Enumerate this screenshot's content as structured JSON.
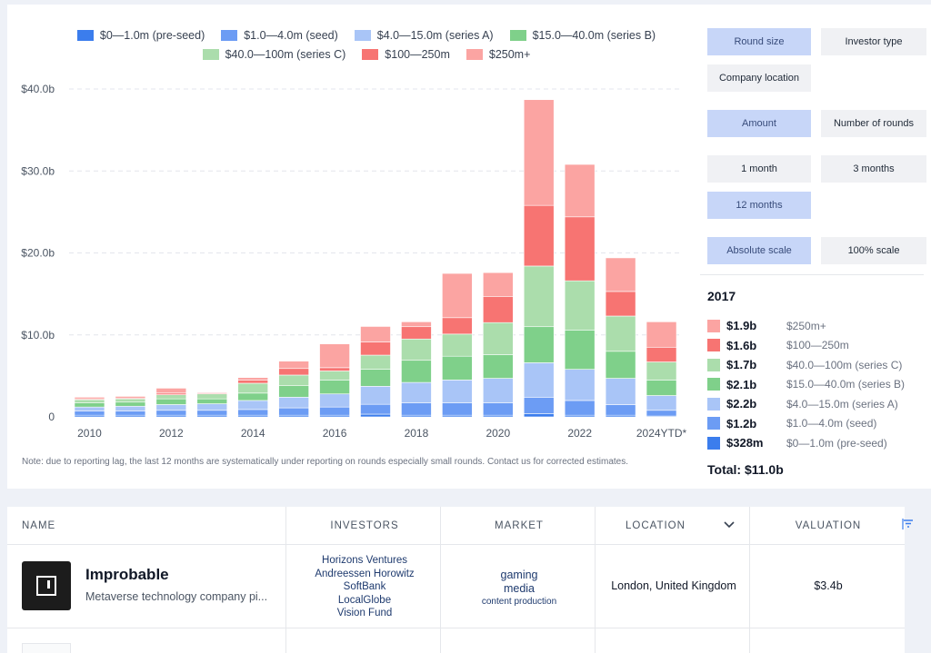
{
  "chart_data": {
    "type": "bar",
    "stacked": true,
    "categories": [
      "2010",
      "2011",
      "2012",
      "2013",
      "2014",
      "2015",
      "2016",
      "2017",
      "2018",
      "2019",
      "2020",
      "2021",
      "2022",
      "2023",
      "2024YTD*"
    ],
    "x_tick_labels": [
      "2010",
      "2012",
      "2014",
      "2016",
      "2018",
      "2020",
      "2022",
      "2024YTD*"
    ],
    "y_tick_labels": [
      "0",
      "$10.0b",
      "$20.0b",
      "$30.0b",
      "$40.0b"
    ],
    "ylim": [
      0,
      40
    ],
    "y_unit": "billions USD",
    "grid": true,
    "legend_position": "top",
    "series": [
      {
        "name": "$0—1.0m (pre-seed)",
        "color": "#3b7ded",
        "values": [
          0.2,
          0.2,
          0.2,
          0.2,
          0.2,
          0.2,
          0.2,
          0.33,
          0.2,
          0.2,
          0.2,
          0.4,
          0.2,
          0.2,
          0.1
        ]
      },
      {
        "name": "$1.0—4.0m (seed)",
        "color": "#6c9cf4",
        "values": [
          0.5,
          0.5,
          0.6,
          0.6,
          0.7,
          0.9,
          1.0,
          1.2,
          1.5,
          1.5,
          1.5,
          2.0,
          1.8,
          1.3,
          0.7
        ]
      },
      {
        "name": "$4.0—15.0m (series A)",
        "color": "#a9c5f7",
        "values": [
          0.5,
          0.6,
          0.7,
          0.8,
          1.1,
          1.3,
          1.6,
          2.2,
          2.5,
          2.8,
          3.0,
          4.2,
          3.8,
          3.2,
          1.8
        ]
      },
      {
        "name": "$15.0—40.0m (series B)",
        "color": "#7fd08a",
        "values": [
          0.5,
          0.5,
          0.7,
          0.6,
          0.9,
          1.4,
          1.7,
          2.1,
          2.7,
          2.9,
          2.9,
          4.4,
          4.8,
          3.3,
          1.9
        ]
      },
      {
        "name": "$40.0—100m (series C)",
        "color": "#abddac",
        "values": [
          0.4,
          0.4,
          0.5,
          0.6,
          1.2,
          1.3,
          1.1,
          1.7,
          2.6,
          2.7,
          3.9,
          7.4,
          6.0,
          4.3,
          2.2
        ]
      },
      {
        "name": "$100—250m",
        "color": "#f77472",
        "values": [
          0.1,
          0.1,
          0.2,
          0.1,
          0.4,
          0.8,
          0.4,
          1.6,
          1.5,
          2.0,
          3.2,
          7.4,
          7.8,
          3.0,
          1.8
        ]
      },
      {
        "name": "$250m+",
        "color": "#fba4a2",
        "values": [
          0.2,
          0.2,
          0.6,
          0.1,
          0.3,
          0.9,
          2.9,
          1.9,
          0.6,
          5.4,
          2.9,
          12.9,
          6.4,
          4.1,
          3.1
        ]
      }
    ]
  },
  "controls": {
    "round_size": "Round size",
    "investor_type": "Investor type",
    "company_location": "Company location",
    "amount": "Amount",
    "number_of_rounds": "Number of rounds",
    "one_month": "1 month",
    "three_months": "3 months",
    "twelve_months": "12 months",
    "absolute_scale": "Absolute scale",
    "percent_scale": "100% scale"
  },
  "summary": {
    "year": "2017",
    "rows": [
      {
        "value": "$1.9b",
        "label": "$250m+",
        "color": "#fba4a2"
      },
      {
        "value": "$1.6b",
        "label": "$100—250m",
        "color": "#f77472"
      },
      {
        "value": "$1.7b",
        "label": "$40.0—100m (series C)",
        "color": "#abddac"
      },
      {
        "value": "$2.1b",
        "label": "$15.0—40.0m (series B)",
        "color": "#7fd08a"
      },
      {
        "value": "$2.2b",
        "label": "$4.0—15.0m (series A)",
        "color": "#a9c5f7"
      },
      {
        "value": "$1.2b",
        "label": "$1.0—4.0m (seed)",
        "color": "#6c9cf4"
      },
      {
        "value": "$328m",
        "label": "$0—1.0m (pre-seed)",
        "color": "#3b7ded"
      }
    ],
    "total": "Total: $11.0b"
  },
  "note": "Note: due to reporting lag, the last 12 months are systematically under reporting on rounds especially small rounds. Contact us for corrected estimates.",
  "table": {
    "headers": {
      "name": "NAME",
      "investors": "INVESTORS",
      "market": "MARKET",
      "location": "LOCATION",
      "valuation": "VALUATION"
    },
    "rows": [
      {
        "name": "Improbable",
        "description": "Metaverse technology company pi...",
        "investors": [
          "Horizons Ventures",
          "Andreessen Horowitz",
          "SoftBank",
          "LocalGlobe",
          "Vision Fund"
        ],
        "market": [
          "gaming",
          "media",
          "content production"
        ],
        "location": "London, United Kingdom",
        "valuation": "$3.4b"
      }
    ]
  },
  "icons": {
    "location_sort": "chevron-down-icon",
    "sort": "sort-icon",
    "logo": "improbable-logo"
  }
}
